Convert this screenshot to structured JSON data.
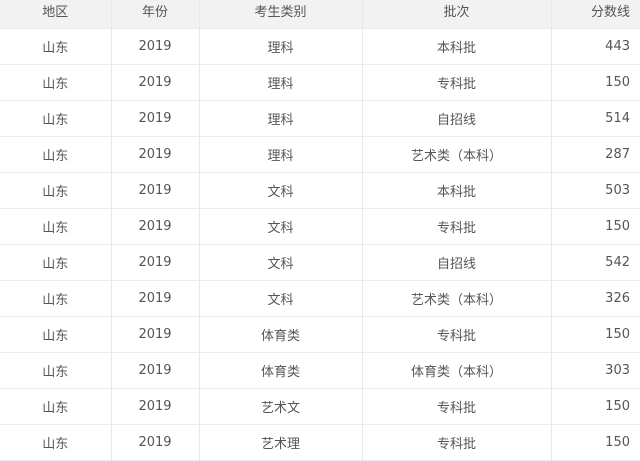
{
  "headers": [
    "地区",
    "年份",
    "考生类别",
    "批次",
    "分数线"
  ],
  "rows": [
    [
      "山东",
      "2019",
      "理科",
      "本科批",
      "443"
    ],
    [
      "山东",
      "2019",
      "理科",
      "专科批",
      "150"
    ],
    [
      "山东",
      "2019",
      "理科",
      "自招线",
      "514"
    ],
    [
      "山东",
      "2019",
      "理科",
      "艺术类（本科）",
      "287"
    ],
    [
      "山东",
      "2019",
      "文科",
      "本科批",
      "503"
    ],
    [
      "山东",
      "2019",
      "文科",
      "专科批",
      "150"
    ],
    [
      "山东",
      "2019",
      "文科",
      "自招线",
      "542"
    ],
    [
      "山东",
      "2019",
      "文科",
      "艺术类（本科）",
      "326"
    ],
    [
      "山东",
      "2019",
      "体育类",
      "专科批",
      "150"
    ],
    [
      "山东",
      "2019",
      "体育类",
      "体育类（本科）",
      "303"
    ],
    [
      "山东",
      "2019",
      "艺术文",
      "专科批",
      "150"
    ],
    [
      "山东",
      "2019",
      "艺术理",
      "专科批",
      "150"
    ]
  ]
}
